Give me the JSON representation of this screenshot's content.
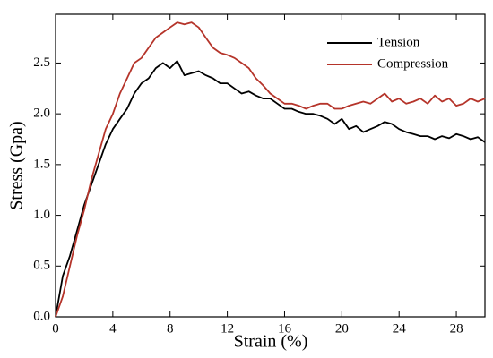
{
  "chart_data": {
    "type": "line",
    "x_label": "Strain (%)",
    "y_label": "Stress (Gpa)",
    "x": [
      0,
      0.5,
      1,
      1.5,
      2,
      2.5,
      3,
      3.5,
      4,
      4.5,
      5,
      5.5,
      6,
      6.5,
      7,
      7.5,
      8,
      8.5,
      9,
      9.5,
      10,
      10.5,
      11,
      11.5,
      12,
      12.5,
      13,
      13.5,
      14,
      14.5,
      15,
      15.5,
      16,
      16.5,
      17,
      17.5,
      18,
      18.5,
      19,
      19.5,
      20,
      20.5,
      21,
      21.5,
      22,
      22.5,
      23,
      23.5,
      24,
      24.5,
      25,
      25.5,
      26,
      26.5,
      27,
      27.5,
      28,
      28.5,
      29,
      29.5,
      30
    ],
    "series": [
      {
        "name": "Tension",
        "color": "#000000",
        "values": [
          0,
          0.4,
          0.6,
          0.85,
          1.1,
          1.3,
          1.5,
          1.7,
          1.85,
          1.95,
          2.05,
          2.2,
          2.3,
          2.35,
          2.45,
          2.5,
          2.45,
          2.52,
          2.38,
          2.4,
          2.42,
          2.38,
          2.35,
          2.3,
          2.3,
          2.25,
          2.2,
          2.22,
          2.18,
          2.15,
          2.15,
          2.1,
          2.05,
          2.05,
          2.02,
          2.0,
          2.0,
          1.98,
          1.95,
          1.9,
          1.95,
          1.85,
          1.88,
          1.82,
          1.85,
          1.88,
          1.92,
          1.9,
          1.85,
          1.82,
          1.8,
          1.78,
          1.78,
          1.75,
          1.78,
          1.76,
          1.8,
          1.78,
          1.75,
          1.77,
          1.72
        ]
      },
      {
        "name": "Compression",
        "color": "#b5342a",
        "values": [
          0,
          0.2,
          0.5,
          0.8,
          1.05,
          1.35,
          1.6,
          1.85,
          2.0,
          2.2,
          2.35,
          2.5,
          2.55,
          2.65,
          2.75,
          2.8,
          2.85,
          2.9,
          2.88,
          2.9,
          2.85,
          2.75,
          2.65,
          2.6,
          2.58,
          2.55,
          2.5,
          2.45,
          2.35,
          2.28,
          2.2,
          2.15,
          2.1,
          2.1,
          2.08,
          2.05,
          2.08,
          2.1,
          2.1,
          2.05,
          2.05,
          2.08,
          2.1,
          2.12,
          2.1,
          2.15,
          2.2,
          2.12,
          2.15,
          2.1,
          2.12,
          2.15,
          2.1,
          2.18,
          2.12,
          2.15,
          2.08,
          2.1,
          2.15,
          2.12,
          2.15
        ]
      }
    ],
    "xlim": [
      0,
      30
    ],
    "xticks": [
      0,
      4,
      8,
      12,
      16,
      20,
      24,
      28
    ],
    "ylim": [
      0,
      2.98
    ],
    "yticks": [
      {
        "value": 0,
        "label": "0.0"
      },
      0.5,
      {
        "value": 1,
        "label": "1.0"
      },
      1.5,
      {
        "value": 2,
        "label": "2.0"
      },
      2.5
    ],
    "legend": "upper right"
  }
}
